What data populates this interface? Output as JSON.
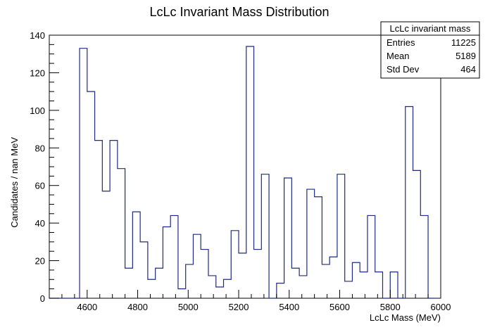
{
  "chart_data": {
    "type": "histogram",
    "title": "LcLc Invariant Mass Distribution",
    "xlabel": "LcLc Mass (MeV)",
    "ylabel": "Candidates / nan MeV",
    "xlim": [
      4450,
      6000
    ],
    "ylim": [
      0,
      140
    ],
    "x_ticks": [
      4600,
      4800,
      5000,
      5200,
      5400,
      5600,
      5800,
      6000
    ],
    "y_ticks": [
      0,
      20,
      40,
      60,
      80,
      100,
      120,
      140
    ],
    "bin_width": 30,
    "bin_start": 4450,
    "values": [
      0,
      0,
      0,
      0,
      133,
      110,
      84,
      57,
      84,
      69,
      16,
      46,
      30,
      10,
      16,
      38,
      44,
      5,
      18,
      34,
      26,
      12,
      6,
      10,
      36,
      24,
      134,
      26,
      66,
      0,
      8,
      64,
      16,
      12,
      58,
      54,
      18,
      22,
      66,
      9,
      19,
      14,
      44,
      14,
      0,
      14,
      0,
      102,
      68,
      44,
      0
    ],
    "line_color": "#1f2a85",
    "stats_box": {
      "name": "LcLc invariant mass",
      "rows": [
        {
          "label": "Entries",
          "value": "11225"
        },
        {
          "label": "Mean",
          "value": "5189"
        },
        {
          "label": "Std Dev",
          "value": "464"
        }
      ]
    }
  }
}
